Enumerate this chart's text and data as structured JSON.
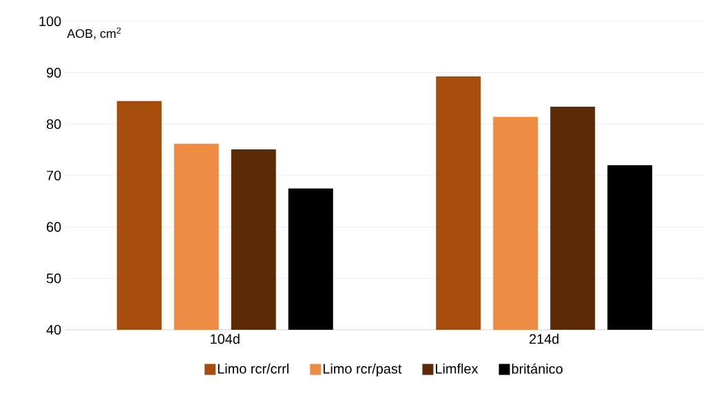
{
  "chart_data": {
    "type": "bar",
    "ylabel": "AOB, cm$^{2}$",
    "categories": [
      "104d",
      "214d"
    ],
    "series": [
      {
        "name": "Limo rcr/crrl",
        "color": "#a64d0e",
        "values": [
          84.5,
          89.3
        ]
      },
      {
        "name": "Limo rcr/past",
        "color": "#ee8b45",
        "values": [
          76.2,
          81.4
        ]
      },
      {
        "name": "Limflex",
        "color": "#5c2a06",
        "values": [
          75.1,
          83.4
        ]
      },
      {
        "name": "británico",
        "color": "#000000",
        "values": [
          67.5,
          72.0
        ]
      }
    ],
    "ylim": [
      40,
      100
    ],
    "yticks": [
      40,
      50,
      60,
      70,
      80,
      90,
      100
    ],
    "grid": "y",
    "legend": "bottom"
  }
}
